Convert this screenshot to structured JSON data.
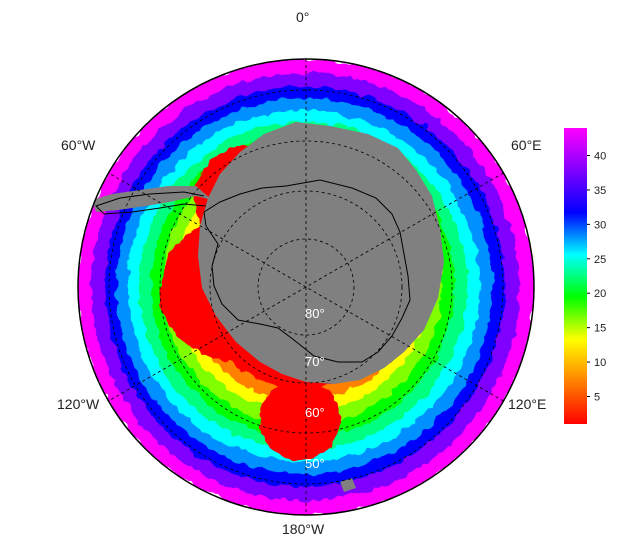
{
  "map": {
    "longitude_labels": {
      "top": "0°",
      "upper_left": "60°W",
      "upper_right": "60°E",
      "lower_left": "120°W",
      "lower_right": "120°E",
      "bottom": "180°W"
    },
    "latitude_labels": [
      "80°",
      "70°",
      "60°",
      "50°"
    ],
    "colors": {
      "land": "#808080",
      "coastline": "#000000",
      "graticule": "#000000",
      "latitude_label_text": "#ffffff"
    }
  },
  "colorbar": {
    "ticks": [
      "5",
      "10",
      "15",
      "20",
      "25",
      "30",
      "35",
      "40"
    ],
    "range": [
      1,
      44
    ],
    "palette": [
      "#ff0000",
      "#ff8000",
      "#ffff00",
      "#00ff00",
      "#00ffff",
      "#0000ff",
      "#ff00ff"
    ]
  }
}
